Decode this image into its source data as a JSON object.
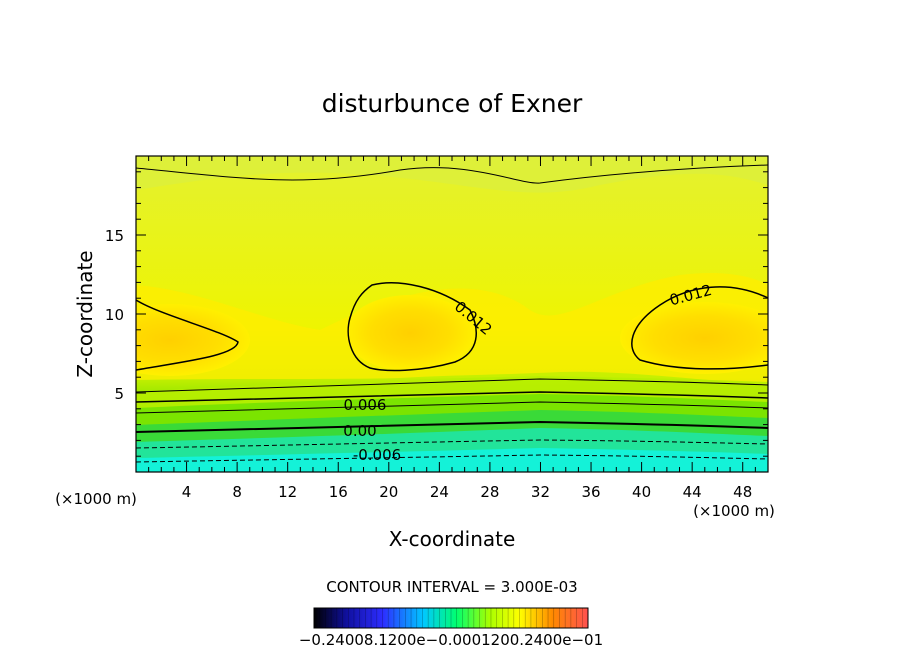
{
  "chart_data": {
    "type": "contour",
    "title": "disturbunce of Exner",
    "xlabel": "X-coordinate",
    "ylabel": "Z-coordinate",
    "x_unit_label": "(×1000 m)",
    "x_unit_label_right": "(×1000 m)",
    "xlim": [
      0,
      50
    ],
    "ylim": [
      0,
      20
    ],
    "x_ticks": [
      4,
      8,
      12,
      16,
      20,
      24,
      28,
      32,
      36,
      40,
      44,
      48
    ],
    "y_ticks": [
      5,
      10,
      15
    ],
    "contour_interval_text": "CONTOUR INTERVAL = 3.000E-03",
    "contour_labels": [
      "0.012",
      "0.012",
      "0.006",
      "0.00",
      "-0.006"
    ],
    "colorbar_label_text": "−0.24008.1200e−0.0001200.2400e−01",
    "colorbar_range": [
      -0.024,
      0.024
    ],
    "colormap": [
      "#000000",
      "#1c1cff",
      "#00d8ff",
      "#00ff66",
      "#9cff00",
      "#ffff00",
      "#ffa000",
      "#ff1000",
      "#ff7070"
    ]
  }
}
